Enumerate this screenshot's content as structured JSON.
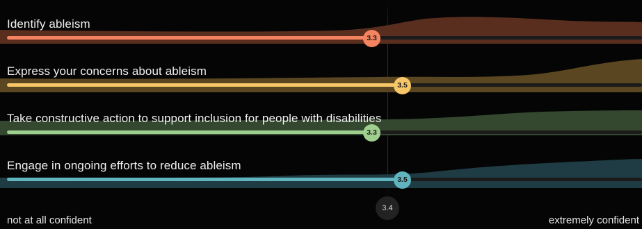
{
  "scale": {
    "min_label": "not at all confident",
    "max_label": "extremely confident",
    "mean_value": "3.4"
  },
  "items": [
    {
      "label": "Identify ableism",
      "value_label": "3.3",
      "value": 3.3,
      "color": "#f4845f",
      "dist_color": "#5a2e1f"
    },
    {
      "label": "Express your concerns about ableism",
      "value_label": "3.5",
      "value": 3.5,
      "color": "#f7c767",
      "dist_color": "#5a4621"
    },
    {
      "label": "Take constructive action to support inclusion for people with disabilities",
      "value_label": "3.3",
      "value": 3.3,
      "color": "#9fcf8f",
      "dist_color": "#34472f"
    },
    {
      "label": "Engage in ongoing efforts to reduce ableism",
      "value_label": "3.5",
      "value": 3.5,
      "color": "#5fb4bd",
      "dist_color": "#1f3c44"
    }
  ]
}
